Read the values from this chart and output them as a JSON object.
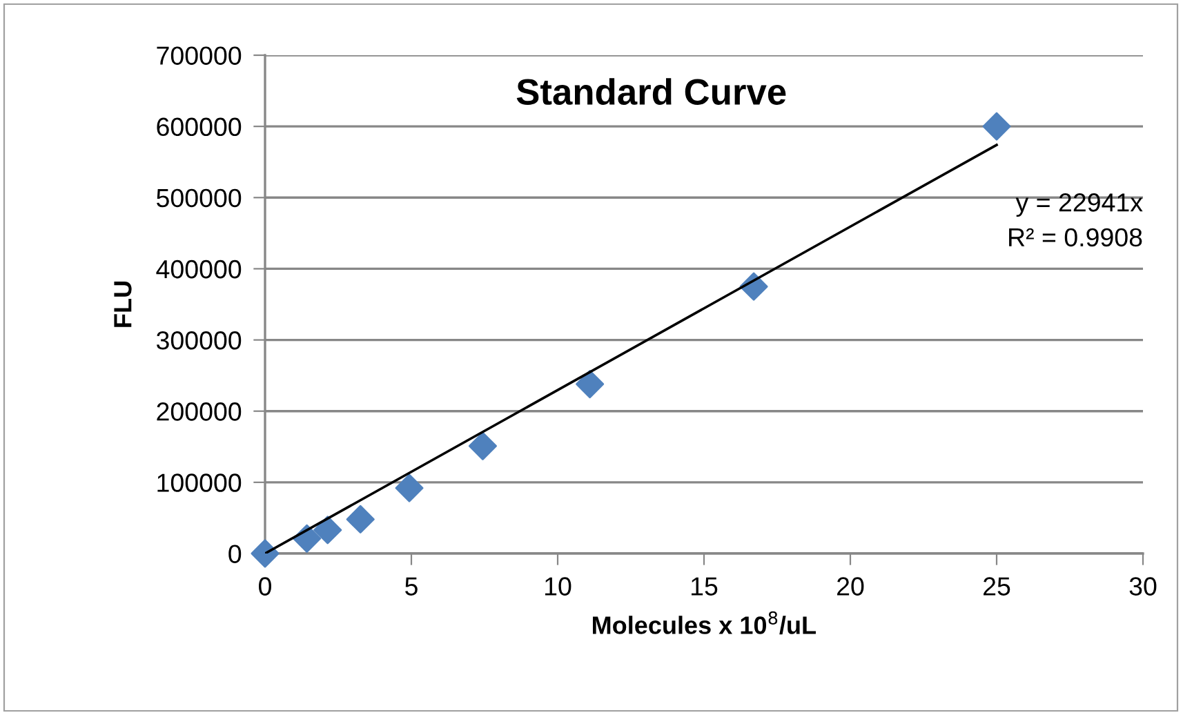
{
  "chart_data": {
    "type": "scatter",
    "title": "Standard Curve",
    "xlabel": "Molecules x 10$^{8}$/uL",
    "ylabel": "FLU",
    "x": [
      0,
      1.43,
      2.14,
      3.26,
      4.93,
      7.44,
      11.1,
      16.7,
      25
    ],
    "series": [
      {
        "color": "#4f81bd",
        "marker": "diamond",
        "values": [
          0,
          21000,
          33000,
          48000,
          92000,
          151000,
          238000,
          375000,
          600000
        ]
      },
      {
        "type": "line",
        "color": "#000000",
        "marker": "none",
        "line_style": "solid",
        "x": [
          0,
          25
        ],
        "values": [
          0,
          574000
        ]
      }
    ],
    "annotations": [
      "y = 22941x",
      "R² = 0.9908"
    ],
    "xlim": [
      0,
      30
    ],
    "xticks": [
      0,
      5,
      10,
      15,
      20,
      25,
      30
    ],
    "ylim": [
      0,
      700000
    ],
    "yticks": [
      0,
      100000,
      200000,
      300000,
      400000,
      500000,
      600000,
      700000
    ],
    "grid": "y"
  }
}
